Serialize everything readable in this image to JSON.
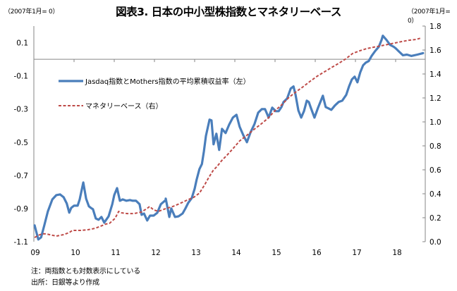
{
  "title": "図表3. 日本の中小型株指数とマネタリーベース",
  "unit_left": "（2007年1月= 0）",
  "unit_right": "（2007年1月= 0）",
  "notes": [
    "注：両指数とも対数表示にしている",
    "出所：日銀等より作成"
  ],
  "colors": {
    "blue": "#4a7ebb",
    "red": "#be4b48",
    "axis": "#868686"
  },
  "chart_data": {
    "type": "line",
    "title": "図表3. 日本の中小型株指数とマネタリーベース",
    "x_tick_labels": [
      "09",
      "10",
      "11",
      "12",
      "13",
      "14",
      "15",
      "16",
      "17",
      "18"
    ],
    "x_ticks": [
      2009,
      2010,
      2011,
      2012,
      2013,
      2014,
      2015,
      2016,
      2017,
      2018
    ],
    "xlim": [
      2009.0,
      2018.75
    ],
    "y_left": {
      "ylim": [
        -1.1,
        0.2
      ],
      "tick_values": [
        -1.1,
        -0.9,
        -0.7,
        -0.5,
        -0.3,
        -0.1,
        0.1
      ],
      "tick_labels": [
        "-1.1",
        "-0.9",
        "-0.7",
        "-0.5",
        "-0.3",
        "-0.1",
        "0.1"
      ],
      "label": "（2007年1月= 0）"
    },
    "y_right": {
      "ylim": [
        0.0,
        1.8
      ],
      "tick_values": [
        0.0,
        0.2,
        0.4,
        0.6,
        0.8,
        1.0,
        1.2,
        1.4,
        1.6,
        1.8
      ],
      "tick_labels": [
        "0.0",
        "0.2",
        "0.4",
        "0.6",
        "0.8",
        "1.0",
        "1.2",
        "1.4",
        "1.6",
        "1.8"
      ],
      "label": "（2007年1月= 0）"
    },
    "legend_position": "upper-left",
    "series": [
      {
        "name": "Jasdaq指数とMothers指数の平均累積収益率（左）",
        "axis": "left",
        "style": "solid",
        "x": [
          2009.02,
          2009.11,
          2009.18,
          2009.26,
          2009.35,
          2009.46,
          2009.56,
          2009.65,
          2009.74,
          2009.82,
          2009.88,
          2009.93,
          2010.0,
          2010.09,
          2010.14,
          2010.23,
          2010.23,
          2010.3,
          2010.37,
          2010.44,
          2010.47,
          2010.54,
          2010.61,
          2010.68,
          2010.75,
          2010.86,
          2010.95,
          2011.0,
          2011.07,
          2011.14,
          2011.21,
          2011.3,
          2011.39,
          2011.46,
          2011.53,
          2011.54,
          2011.63,
          2011.68,
          2011.74,
          2011.82,
          2011.89,
          2011.98,
          2012.07,
          2012.16,
          2012.28,
          2012.28,
          2012.37,
          2012.42,
          2012.51,
          2012.6,
          2012.7,
          2012.77,
          2012.84,
          2012.93,
          2013.0,
          2013.05,
          2013.12,
          2013.18,
          2013.23,
          2013.28,
          2013.37,
          2013.42,
          2013.47,
          2013.54,
          2013.61,
          2013.68,
          2013.77,
          2013.86,
          2013.95,
          2014.04,
          2014.12,
          2014.21,
          2014.3,
          2014.39,
          2014.49,
          2014.58,
          2014.67,
          2014.75,
          2014.84,
          2014.93,
          2015.02,
          2015.09,
          2015.16,
          2015.21,
          2015.3,
          2015.39,
          2015.46,
          2015.51,
          2015.58,
          2015.65,
          2015.72,
          2015.79,
          2015.84,
          2015.89,
          2015.98,
          2016.07,
          2016.14,
          2016.19,
          2016.26,
          2016.33,
          2016.4,
          2016.49,
          2016.58,
          2016.67,
          2016.77,
          2016.84,
          2016.91,
          2016.98,
          2017.05,
          2017.12,
          2017.19,
          2017.26,
          2017.33,
          2017.4,
          2017.49,
          2017.58,
          2017.65,
          2017.68,
          2017.77,
          2017.86,
          2017.95,
          2018.0,
          2018.09,
          2018.18,
          2018.28,
          2018.39,
          2018.54,
          2018.68
        ],
        "values": [
          -1.002,
          -1.087,
          -1.074,
          -1.002,
          -0.917,
          -0.845,
          -0.819,
          -0.815,
          -0.832,
          -0.87,
          -0.925,
          -0.896,
          -0.883,
          -0.883,
          -0.845,
          -0.743,
          -0.743,
          -0.841,
          -0.887,
          -0.9,
          -0.904,
          -0.96,
          -0.968,
          -0.951,
          -0.985,
          -0.947,
          -0.874,
          -0.819,
          -0.777,
          -0.853,
          -0.845,
          -0.853,
          -0.849,
          -0.853,
          -0.853,
          -0.853,
          -0.874,
          -0.938,
          -0.93,
          -0.972,
          -0.943,
          -0.943,
          -0.926,
          -0.874,
          -0.849,
          -0.84,
          -0.951,
          -0.9,
          -0.951,
          -0.947,
          -0.93,
          -0.9,
          -0.866,
          -0.836,
          -0.781,
          -0.726,
          -0.662,
          -0.632,
          -0.556,
          -0.462,
          -0.364,
          -0.369,
          -0.513,
          -0.449,
          -0.547,
          -0.42,
          -0.445,
          -0.394,
          -0.352,
          -0.335,
          -0.407,
          -0.458,
          -0.5,
          -0.441,
          -0.39,
          -0.322,
          -0.301,
          -0.301,
          -0.352,
          -0.292,
          -0.313,
          -0.313,
          -0.288,
          -0.258,
          -0.237,
          -0.177,
          -0.164,
          -0.215,
          -0.309,
          -0.352,
          -0.313,
          -0.25,
          -0.258,
          -0.292,
          -0.352,
          -0.292,
          -0.25,
          -0.22,
          -0.288,
          -0.296,
          -0.305,
          -0.279,
          -0.258,
          -0.25,
          -0.215,
          -0.164,
          -0.122,
          -0.105,
          -0.139,
          -0.079,
          -0.037,
          -0.02,
          -0.011,
          0.019,
          0.049,
          0.075,
          0.117,
          0.142,
          0.117,
          0.087,
          0.075,
          0.066,
          0.045,
          0.024,
          0.028,
          0.02,
          0.028,
          0.037
        ]
      },
      {
        "name": "マネタリーベース（右）",
        "axis": "right",
        "style": "dashed",
        "x": [
          2009.02,
          2009.11,
          2009.21,
          2009.3,
          2009.39,
          2009.47,
          2009.56,
          2009.65,
          2009.74,
          2009.88,
          2009.96,
          2010.09,
          2010.18,
          2010.35,
          2010.53,
          2010.7,
          2010.79,
          2010.88,
          2011.02,
          2011.11,
          2011.18,
          2011.32,
          2011.49,
          2011.67,
          2011.81,
          2011.88,
          2011.98,
          2012.1,
          2012.28,
          2012.46,
          2012.63,
          2012.81,
          2012.98,
          2013.12,
          2013.25,
          2013.35,
          2013.46,
          2013.56,
          2013.67,
          2013.81,
          2013.95,
          2014.12,
          2014.3,
          2014.47,
          2014.65,
          2014.82,
          2015.0,
          2015.18,
          2015.35,
          2015.53,
          2015.7,
          2015.88,
          2016.05,
          2016.23,
          2016.4,
          2016.58,
          2016.75,
          2016.93,
          2017.11,
          2017.28,
          2017.46,
          2017.63,
          2017.81,
          2017.98,
          2018.16,
          2018.33,
          2018.51,
          2018.63
        ],
        "values": [
          0.035,
          0.053,
          0.065,
          0.065,
          0.059,
          0.053,
          0.047,
          0.053,
          0.059,
          0.076,
          0.094,
          0.094,
          0.094,
          0.1,
          0.112,
          0.135,
          0.147,
          0.153,
          0.194,
          0.253,
          0.241,
          0.235,
          0.235,
          0.247,
          0.276,
          0.294,
          0.265,
          0.253,
          0.276,
          0.294,
          0.318,
          0.347,
          0.371,
          0.405,
          0.476,
          0.535,
          0.594,
          0.629,
          0.676,
          0.724,
          0.776,
          0.841,
          0.888,
          0.935,
          0.982,
          1.029,
          1.094,
          1.147,
          1.206,
          1.253,
          1.294,
          1.341,
          1.382,
          1.418,
          1.453,
          1.488,
          1.524,
          1.571,
          1.594,
          1.612,
          1.624,
          1.635,
          1.647,
          1.659,
          1.671,
          1.682,
          1.688,
          1.7
        ]
      }
    ]
  }
}
